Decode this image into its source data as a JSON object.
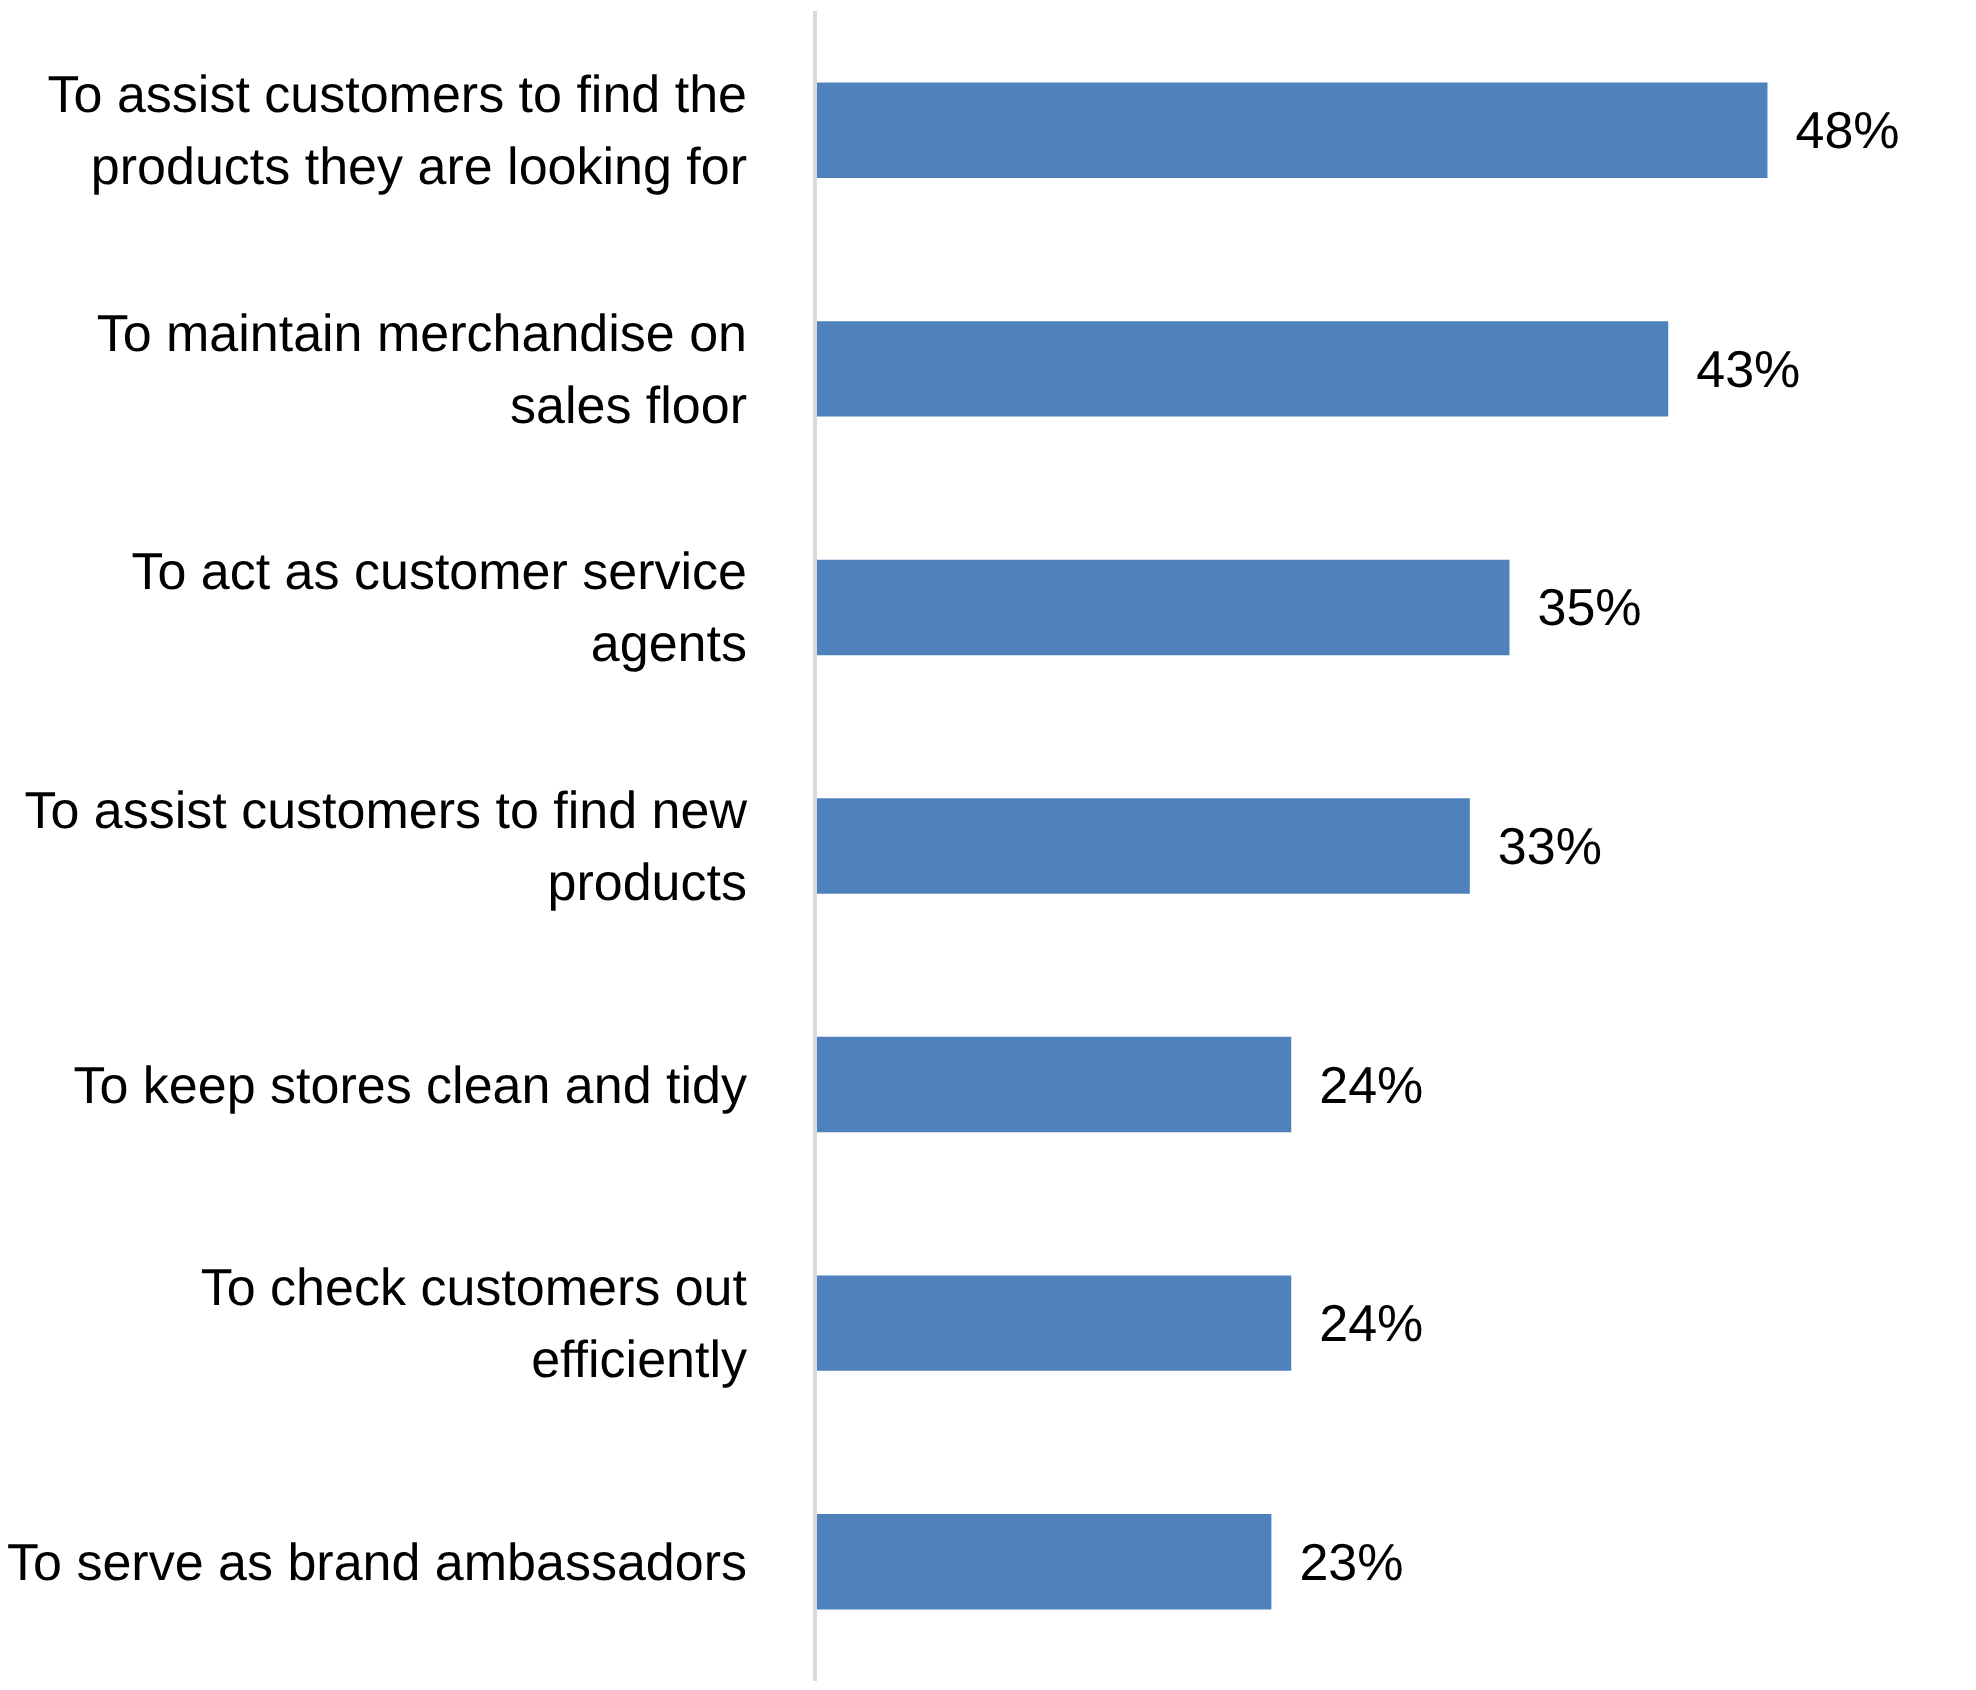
{
  "chart_data": {
    "type": "bar",
    "orientation": "horizontal",
    "categories": [
      "To assist customers to find the products they are looking for",
      "To maintain merchandise on sales floor",
      "To act as customer service agents",
      "To assist customers to find new products",
      "To keep stores clean and tidy",
      "To check customers out efficiently",
      "To serve as brand ambassadors"
    ],
    "values": [
      48,
      43,
      35,
      33,
      24,
      24,
      23
    ],
    "color": "#4f81bd",
    "data_labels": true,
    "value_labels": [
      "48%",
      "43%",
      "35%",
      "33%",
      "24%",
      "24%",
      "23%"
    ]
  }
}
